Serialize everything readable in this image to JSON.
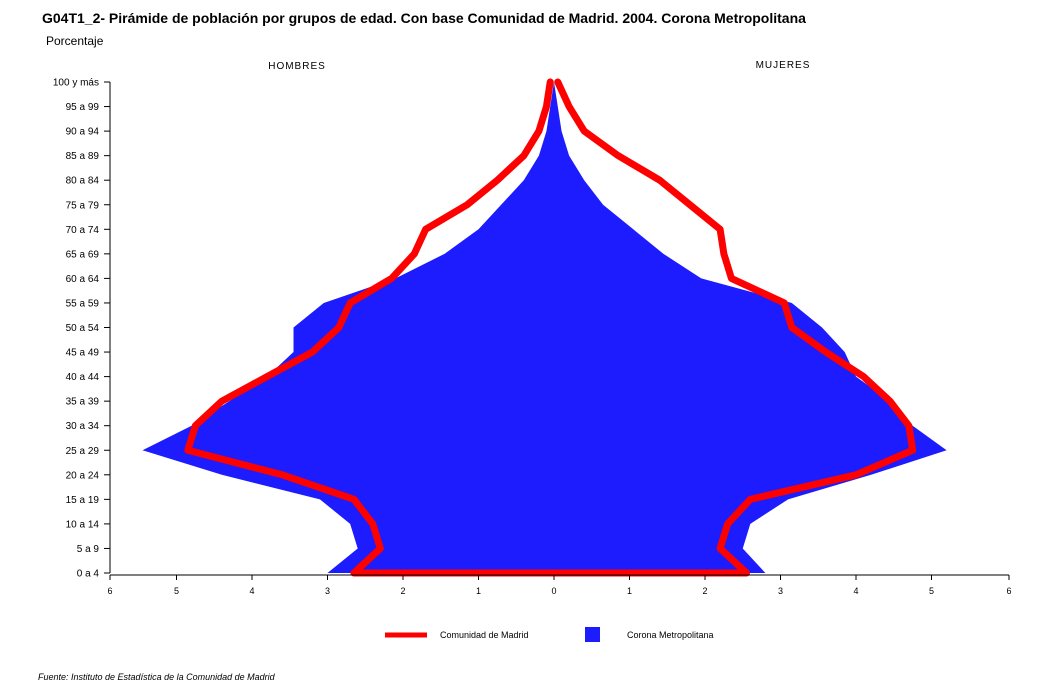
{
  "title": "G04T1_2- Pirámide de población por grupos de edad.  Con base Comunidad de Madrid. 2004. Corona Metropolitana",
  "subtitle": "Porcentaje",
  "source": "Fuente: Instituto de Estadística de la Comunidad de Madrid",
  "colors": {
    "madrid": "#ff0000",
    "corona": "#1c1cff"
  },
  "chart_data": {
    "type": "area",
    "title": "G04T1_2- Pirámide de población por grupos de edad.  Con base Comunidad de Madrid. 2004. Corona Metropolitana",
    "ylabel": "Porcentaje",
    "left_label": "HOMBRES",
    "right_label": "MUJERES",
    "categories": [
      "0 a 4",
      "5 a 9",
      "10 a 14",
      "15 a 19",
      "20 a 24",
      "25 a 29",
      "30 a 34",
      "35 a 39",
      "40 a 44",
      "45 a 49",
      "50 a 54",
      "55 a 59",
      "60 a 64",
      "65 a 69",
      "70 a 74",
      "75 a 79",
      "80 a 84",
      "85 a 89",
      "90 a 94",
      "95 a 99",
      "100 y más"
    ],
    "x_ticks_left": [
      "6",
      "5",
      "4",
      "3",
      "2",
      "1",
      "0"
    ],
    "x_ticks_right": [
      "1",
      "2",
      "3",
      "4",
      "5",
      "6"
    ],
    "xlim": [
      -6,
      6
    ],
    "legend": [
      "Comunidad de Madrid",
      "Corona Metropolitana"
    ],
    "series": [
      {
        "name": "Corona Metropolitana",
        "men": [
          3.0,
          2.6,
          2.7,
          3.1,
          4.4,
          5.45,
          4.8,
          4.3,
          3.8,
          3.45,
          3.45,
          3.05,
          2.1,
          1.45,
          1.0,
          0.7,
          0.4,
          0.2,
          0.1,
          0.05,
          0.0
        ],
        "women": [
          2.8,
          2.5,
          2.6,
          3.1,
          4.2,
          5.2,
          4.75,
          4.45,
          4.0,
          3.85,
          3.55,
          3.15,
          1.95,
          1.45,
          1.05,
          0.65,
          0.4,
          0.2,
          0.1,
          0.05,
          0.0
        ]
      },
      {
        "name": "Comunidad de Madrid",
        "men": [
          2.65,
          2.3,
          2.4,
          2.65,
          3.6,
          4.85,
          4.75,
          4.4,
          3.8,
          3.2,
          2.85,
          2.7,
          2.15,
          1.85,
          1.7,
          1.15,
          0.75,
          0.4,
          0.2,
          0.1,
          0.05
        ],
        "women": [
          2.55,
          2.2,
          2.3,
          2.6,
          4.0,
          4.75,
          4.7,
          4.45,
          4.1,
          3.6,
          3.15,
          3.05,
          2.35,
          2.25,
          2.2,
          1.8,
          1.4,
          0.85,
          0.4,
          0.2,
          0.05
        ]
      }
    ],
    "grid": false
  }
}
